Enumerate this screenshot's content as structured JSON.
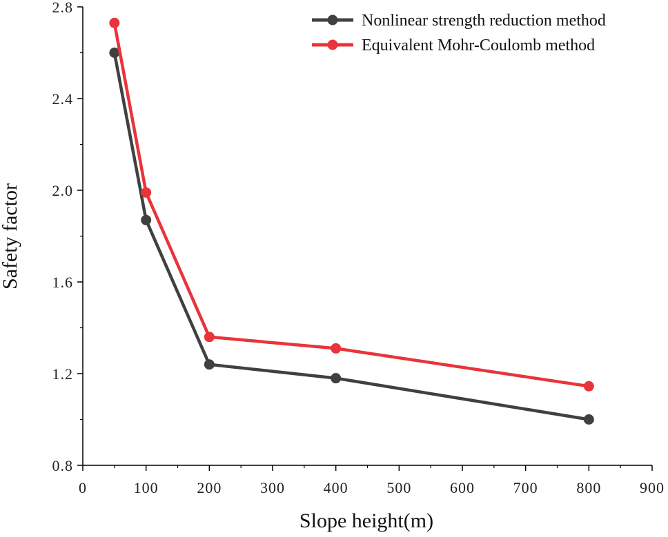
{
  "chart_data": {
    "type": "line",
    "xlabel": "Slope height(m)",
    "ylabel": "Safety factor",
    "xlim": [
      0,
      900
    ],
    "ylim": [
      0.8,
      2.8
    ],
    "xticks": [
      0,
      100,
      200,
      300,
      400,
      500,
      600,
      700,
      800,
      900
    ],
    "yticks": [
      0.8,
      1.2,
      1.6,
      2.0,
      2.4,
      2.8
    ],
    "xtick_labels": [
      "0",
      "100",
      "200",
      "300",
      "400",
      "500",
      "600",
      "700",
      "800",
      "900"
    ],
    "ytick_labels": [
      "0.8",
      "1.2",
      "1.6",
      "2.0",
      "2.4",
      "2.8"
    ],
    "grid": false,
    "legend_position": "top-right",
    "series": [
      {
        "name": "Nonlinear strength reduction method",
        "color": "#404040",
        "x": [
          50,
          100,
          200,
          400,
          800
        ],
        "y": [
          2.6,
          1.87,
          1.24,
          1.18,
          1.0
        ]
      },
      {
        "name": "Equivalent Mohr-Coulomb method",
        "color": "#e8343a",
        "x": [
          50,
          100,
          200,
          400,
          800
        ],
        "y": [
          2.73,
          1.99,
          1.36,
          1.31,
          1.145
        ]
      }
    ]
  }
}
